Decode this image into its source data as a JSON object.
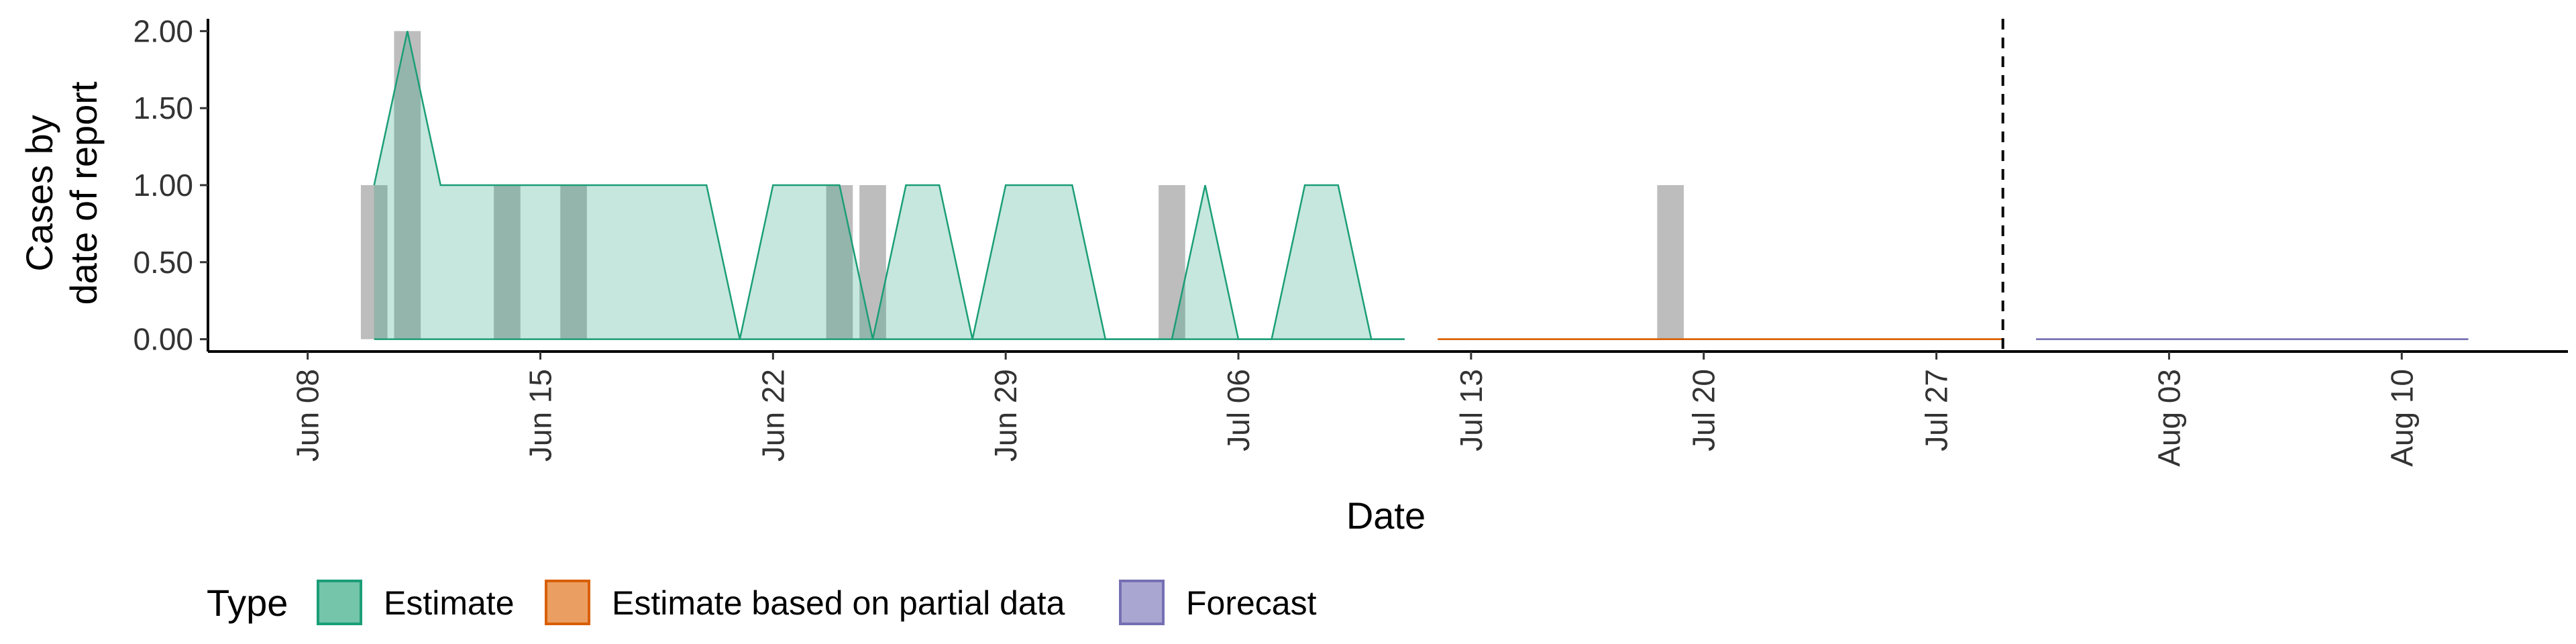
{
  "chart_data": {
    "type": "area",
    "xlabel": "Date",
    "ylabel_lines": [
      "Cases by",
      "date of report"
    ],
    "xlim": [
      "2020-06-05",
      "2020-08-15"
    ],
    "ylim": [
      -0.08,
      2.08
    ],
    "x_ticks": [
      {
        "date": "2020-06-08",
        "label": "Jun 08"
      },
      {
        "date": "2020-06-15",
        "label": "Jun 15"
      },
      {
        "date": "2020-06-22",
        "label": "Jun 22"
      },
      {
        "date": "2020-06-29",
        "label": "Jun 29"
      },
      {
        "date": "2020-07-06",
        "label": "Jul 06"
      },
      {
        "date": "2020-07-13",
        "label": "Jul 13"
      },
      {
        "date": "2020-07-20",
        "label": "Jul 20"
      },
      {
        "date": "2020-07-27",
        "label": "Jul 27"
      },
      {
        "date": "2020-08-03",
        "label": "Aug 03"
      },
      {
        "date": "2020-08-10",
        "label": "Aug 10"
      }
    ],
    "y_ticks": [
      {
        "value": 0,
        "label": "0.00"
      },
      {
        "value": 0.5,
        "label": "0.50"
      },
      {
        "value": 1,
        "label": "1.00"
      },
      {
        "value": 1.5,
        "label": "1.50"
      },
      {
        "value": 2,
        "label": "2.00"
      }
    ],
    "reported_cases": {
      "color": "#bdbdbd",
      "bars": [
        {
          "date": "2020-06-10",
          "value": 1
        },
        {
          "date": "2020-06-11",
          "value": 2
        },
        {
          "date": "2020-06-14",
          "value": 1
        },
        {
          "date": "2020-06-16",
          "value": 1
        },
        {
          "date": "2020-06-24",
          "value": 1
        },
        {
          "date": "2020-06-25",
          "value": 1
        },
        {
          "date": "2020-07-04",
          "value": 1
        },
        {
          "date": "2020-07-19",
          "value": 1
        }
      ]
    },
    "series": [
      {
        "type_label": "Estimate",
        "fill": "#1b9e77",
        "line": "#1b9e77",
        "points": [
          [
            "2020-06-10",
            0,
            1
          ],
          [
            "2020-06-11",
            0,
            2
          ],
          [
            "2020-06-12",
            0,
            1
          ],
          [
            "2020-06-13",
            0,
            1
          ],
          [
            "2020-06-14",
            0,
            1
          ],
          [
            "2020-06-15",
            0,
            1
          ],
          [
            "2020-06-16",
            0,
            1
          ],
          [
            "2020-06-17",
            0,
            1
          ],
          [
            "2020-06-18",
            0,
            1
          ],
          [
            "2020-06-19",
            0,
            1
          ],
          [
            "2020-06-20",
            0,
            1
          ],
          [
            "2020-06-21",
            0,
            0
          ],
          [
            "2020-06-22",
            0,
            1
          ],
          [
            "2020-06-23",
            0,
            1
          ],
          [
            "2020-06-24",
            0,
            1
          ],
          [
            "2020-06-25",
            0,
            0
          ],
          [
            "2020-06-26",
            0,
            1
          ],
          [
            "2020-06-27",
            0,
            1
          ],
          [
            "2020-06-28",
            0,
            0
          ],
          [
            "2020-06-29",
            0,
            1
          ],
          [
            "2020-06-30",
            0,
            1
          ],
          [
            "2020-07-01",
            0,
            1
          ],
          [
            "2020-07-02",
            0,
            0
          ],
          [
            "2020-07-03",
            0,
            0
          ],
          [
            "2020-07-04",
            0,
            0
          ],
          [
            "2020-07-05",
            0,
            1
          ],
          [
            "2020-07-06",
            0,
            0
          ],
          [
            "2020-07-07",
            0,
            0
          ],
          [
            "2020-07-08",
            0,
            1
          ],
          [
            "2020-07-09",
            0,
            1
          ],
          [
            "2020-07-10",
            0,
            0
          ],
          [
            "2020-07-11",
            0,
            0
          ]
        ]
      },
      {
        "type_label": "Estimate based on partial data",
        "fill": "#d95f02",
        "line": "#d95f02",
        "points": [
          [
            "2020-07-12",
            0,
            0
          ],
          [
            "2020-07-29",
            0,
            0
          ]
        ]
      },
      {
        "type_label": "Forecast",
        "fill": "#7570b3",
        "line": "#7570b3",
        "points": [
          [
            "2020-07-30",
            0,
            0
          ],
          [
            "2020-08-12",
            0,
            0
          ]
        ]
      }
    ],
    "forecast_start_line": "2020-07-29",
    "legend": {
      "title": "Type",
      "position": "bottom",
      "items": [
        {
          "label": "Estimate",
          "fill": "#74c5aa",
          "stroke": "#1b9e77"
        },
        {
          "label": "Estimate based on partial data",
          "fill": "#eb9e62",
          "stroke": "#d95f02"
        },
        {
          "label": "Forecast",
          "fill": "#aaa6d2",
          "stroke": "#7570b3"
        }
      ]
    }
  }
}
